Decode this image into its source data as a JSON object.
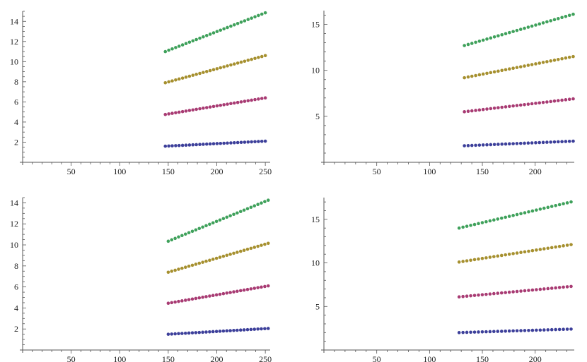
{
  "colors": {
    "series1": "#3c3f9a",
    "series2": "#a83b73",
    "series3": "#a6902f",
    "series4": "#3fa15b",
    "axis": "#555555",
    "text": "#222222"
  },
  "chart_data": [
    {
      "type": "scatter",
      "title": "",
      "xlabel": "",
      "ylabel": "",
      "xlim": [
        0,
        255
      ],
      "ylim": [
        0,
        15
      ],
      "x_ticks": [
        50,
        100,
        150,
        200,
        250
      ],
      "x_tick_labels": [
        "50",
        "100",
        "150",
        "200",
        "250"
      ],
      "y_ticks": [
        2,
        4,
        6,
        8,
        10,
        12,
        14
      ],
      "y_tick_labels": [
        "2",
        "4",
        "6",
        "8",
        "10",
        "12",
        "14"
      ],
      "x_range": [
        147,
        250
      ],
      "points_per_series": 30,
      "series": [
        {
          "y_range": [
            1.6,
            2.1
          ],
          "color": "#3c3f9a"
        },
        {
          "y_range": [
            4.75,
            6.4
          ],
          "color": "#a83b73"
        },
        {
          "y_range": [
            7.9,
            10.6
          ],
          "color": "#a6902f"
        },
        {
          "y_range": [
            11.0,
            14.85
          ],
          "color": "#3fa15b"
        }
      ],
      "grid": false
    },
    {
      "type": "scatter",
      "title": "",
      "xlabel": "",
      "ylabel": "",
      "xlim": [
        0,
        237
      ],
      "ylim": [
        0,
        16.5
      ],
      "x_ticks": [
        50,
        100,
        150,
        200
      ],
      "x_tick_labels": [
        "50",
        "100",
        "150",
        "200"
      ],
      "y_ticks": [
        5,
        10,
        15
      ],
      "y_tick_labels": [
        "5",
        "10",
        "15"
      ],
      "x_range": [
        133,
        236
      ],
      "points_per_series": 30,
      "series": [
        {
          "y_range": [
            1.8,
            2.3
          ],
          "color": "#3c3f9a"
        },
        {
          "y_range": [
            5.5,
            6.9
          ],
          "color": "#a83b73"
        },
        {
          "y_range": [
            9.2,
            11.5
          ],
          "color": "#a6902f"
        },
        {
          "y_range": [
            12.7,
            16.1
          ],
          "color": "#3fa15b"
        }
      ],
      "grid": false
    },
    {
      "type": "scatter",
      "title": "",
      "xlabel": "",
      "ylabel": "",
      "xlim": [
        0,
        255
      ],
      "ylim": [
        0,
        14.5
      ],
      "x_ticks": [
        50,
        100,
        150,
        200,
        250
      ],
      "x_tick_labels": [
        "50",
        "100",
        "150",
        "200",
        "250"
      ],
      "y_ticks": [
        2,
        4,
        6,
        8,
        10,
        12,
        14
      ],
      "y_tick_labels": [
        "2",
        "4",
        "6",
        "8",
        "10",
        "12",
        "14"
      ],
      "x_range": [
        150,
        253
      ],
      "points_per_series": 30,
      "series": [
        {
          "y_range": [
            1.5,
            2.05
          ],
          "color": "#3c3f9a"
        },
        {
          "y_range": [
            4.45,
            6.1
          ],
          "color": "#a83b73"
        },
        {
          "y_range": [
            7.4,
            10.15
          ],
          "color": "#a6902f"
        },
        {
          "y_range": [
            10.35,
            14.25
          ],
          "color": "#3fa15b"
        }
      ],
      "grid": false
    },
    {
      "type": "scatter",
      "title": "",
      "xlabel": "",
      "ylabel": "",
      "xlim": [
        0,
        237
      ],
      "ylim": [
        0,
        17.5
      ],
      "x_ticks": [
        50,
        100,
        150,
        200
      ],
      "x_tick_labels": [
        "50",
        "100",
        "150",
        "200"
      ],
      "y_ticks": [
        5,
        10,
        15
      ],
      "y_tick_labels": [
        "5",
        "10",
        "15"
      ],
      "x_range": [
        128,
        234
      ],
      "points_per_series": 30,
      "series": [
        {
          "y_range": [
            2.0,
            2.4
          ],
          "color": "#3c3f9a"
        },
        {
          "y_range": [
            6.1,
            7.3
          ],
          "color": "#a83b73"
        },
        {
          "y_range": [
            10.1,
            12.1
          ],
          "color": "#a6902f"
        },
        {
          "y_range": [
            14.0,
            17.0
          ],
          "color": "#3fa15b"
        }
      ],
      "grid": false
    }
  ]
}
